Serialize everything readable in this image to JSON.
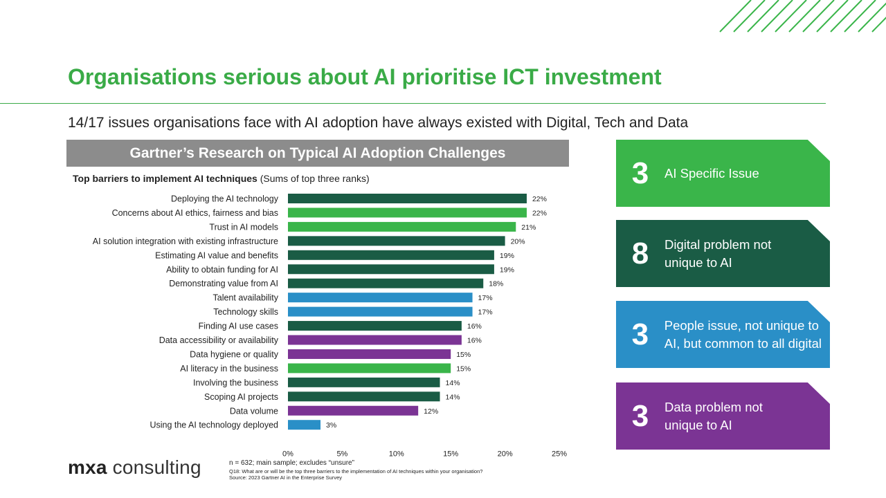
{
  "title": "Organisations serious about AI prioritise ICT investment",
  "subtitle": "14/17 issues organisations face with AI adoption have always existed with Digital, Tech and Data",
  "banner": "Gartner’s Research on Typical AI Adoption Challenges",
  "chart_heading": {
    "bold": "Top barriers to implement AI techniques",
    "normal": " (Sums of top three ranks)"
  },
  "colors": {
    "ai_specific": "#3ab54a",
    "digital": "#1a5c45",
    "people": "#2a8fc7",
    "data": "#7b3494",
    "title_green": "#3aab47"
  },
  "chart_data": {
    "type": "bar",
    "orientation": "horizontal",
    "title": "Top barriers to implement AI techniques (Sums of top three ranks)",
    "categories": [
      "Deploying the AI technology",
      "Concerns about AI ethics, fairness and bias",
      "Trust in AI models",
      "AI solution integration with existing infrastructure",
      "Estimating AI value and benefits",
      "Ability to obtain funding for AI",
      "Demonstrating value from AI",
      "Talent availability",
      "Technology skills",
      "Finding AI use cases",
      "Data accessibility or availability",
      "Data hygiene or quality",
      "AI literacy in the business",
      "Involving the business",
      "Scoping AI projects",
      "Data volume",
      "Using the AI technology deployed"
    ],
    "values": [
      22,
      22,
      21,
      20,
      19,
      19,
      18,
      17,
      17,
      16,
      16,
      15,
      15,
      14,
      14,
      12,
      3
    ],
    "value_labels": [
      "22%",
      "22%",
      "21%",
      "20%",
      "19%",
      "19%",
      "18%",
      "17%",
      "17%",
      "16%",
      "16%",
      "15%",
      "15%",
      "14%",
      "14%",
      "12%",
      "3%"
    ],
    "bar_groups": [
      "digital",
      "ai_specific",
      "ai_specific",
      "digital",
      "digital",
      "digital",
      "digital",
      "people",
      "people",
      "digital",
      "data",
      "data",
      "ai_specific",
      "digital",
      "digital",
      "data",
      "people"
    ],
    "xlim": [
      0,
      25
    ],
    "xticks": [
      0,
      5,
      10,
      15,
      20,
      25
    ],
    "xtick_labels": [
      "0%",
      "5%",
      "10%",
      "15%",
      "20%",
      "25%"
    ],
    "grid": false,
    "legend": "none"
  },
  "cards": [
    {
      "number": "3",
      "label": "AI Specific Issue",
      "color": "#3ab54a"
    },
    {
      "number": "8",
      "label": "Digital problem not unique to AI",
      "color": "#1a5c45"
    },
    {
      "number": "3",
      "label": "People issue, not unique to AI, but common to all digital",
      "color": "#2a8fc7"
    },
    {
      "number": "3",
      "label": "Data problem not unique to AI",
      "color": "#7b3494"
    }
  ],
  "footer": {
    "sample": "n = 632; main sample; excludes “unsure”",
    "question": "Q18: What are or will be the top three barriers to the implementation of AI techniques within your organisation?",
    "source": "Source: 2023 Gartner AI in the Enterprise Survey"
  },
  "logo": {
    "bold": "mxa",
    "rest": " consulting"
  }
}
